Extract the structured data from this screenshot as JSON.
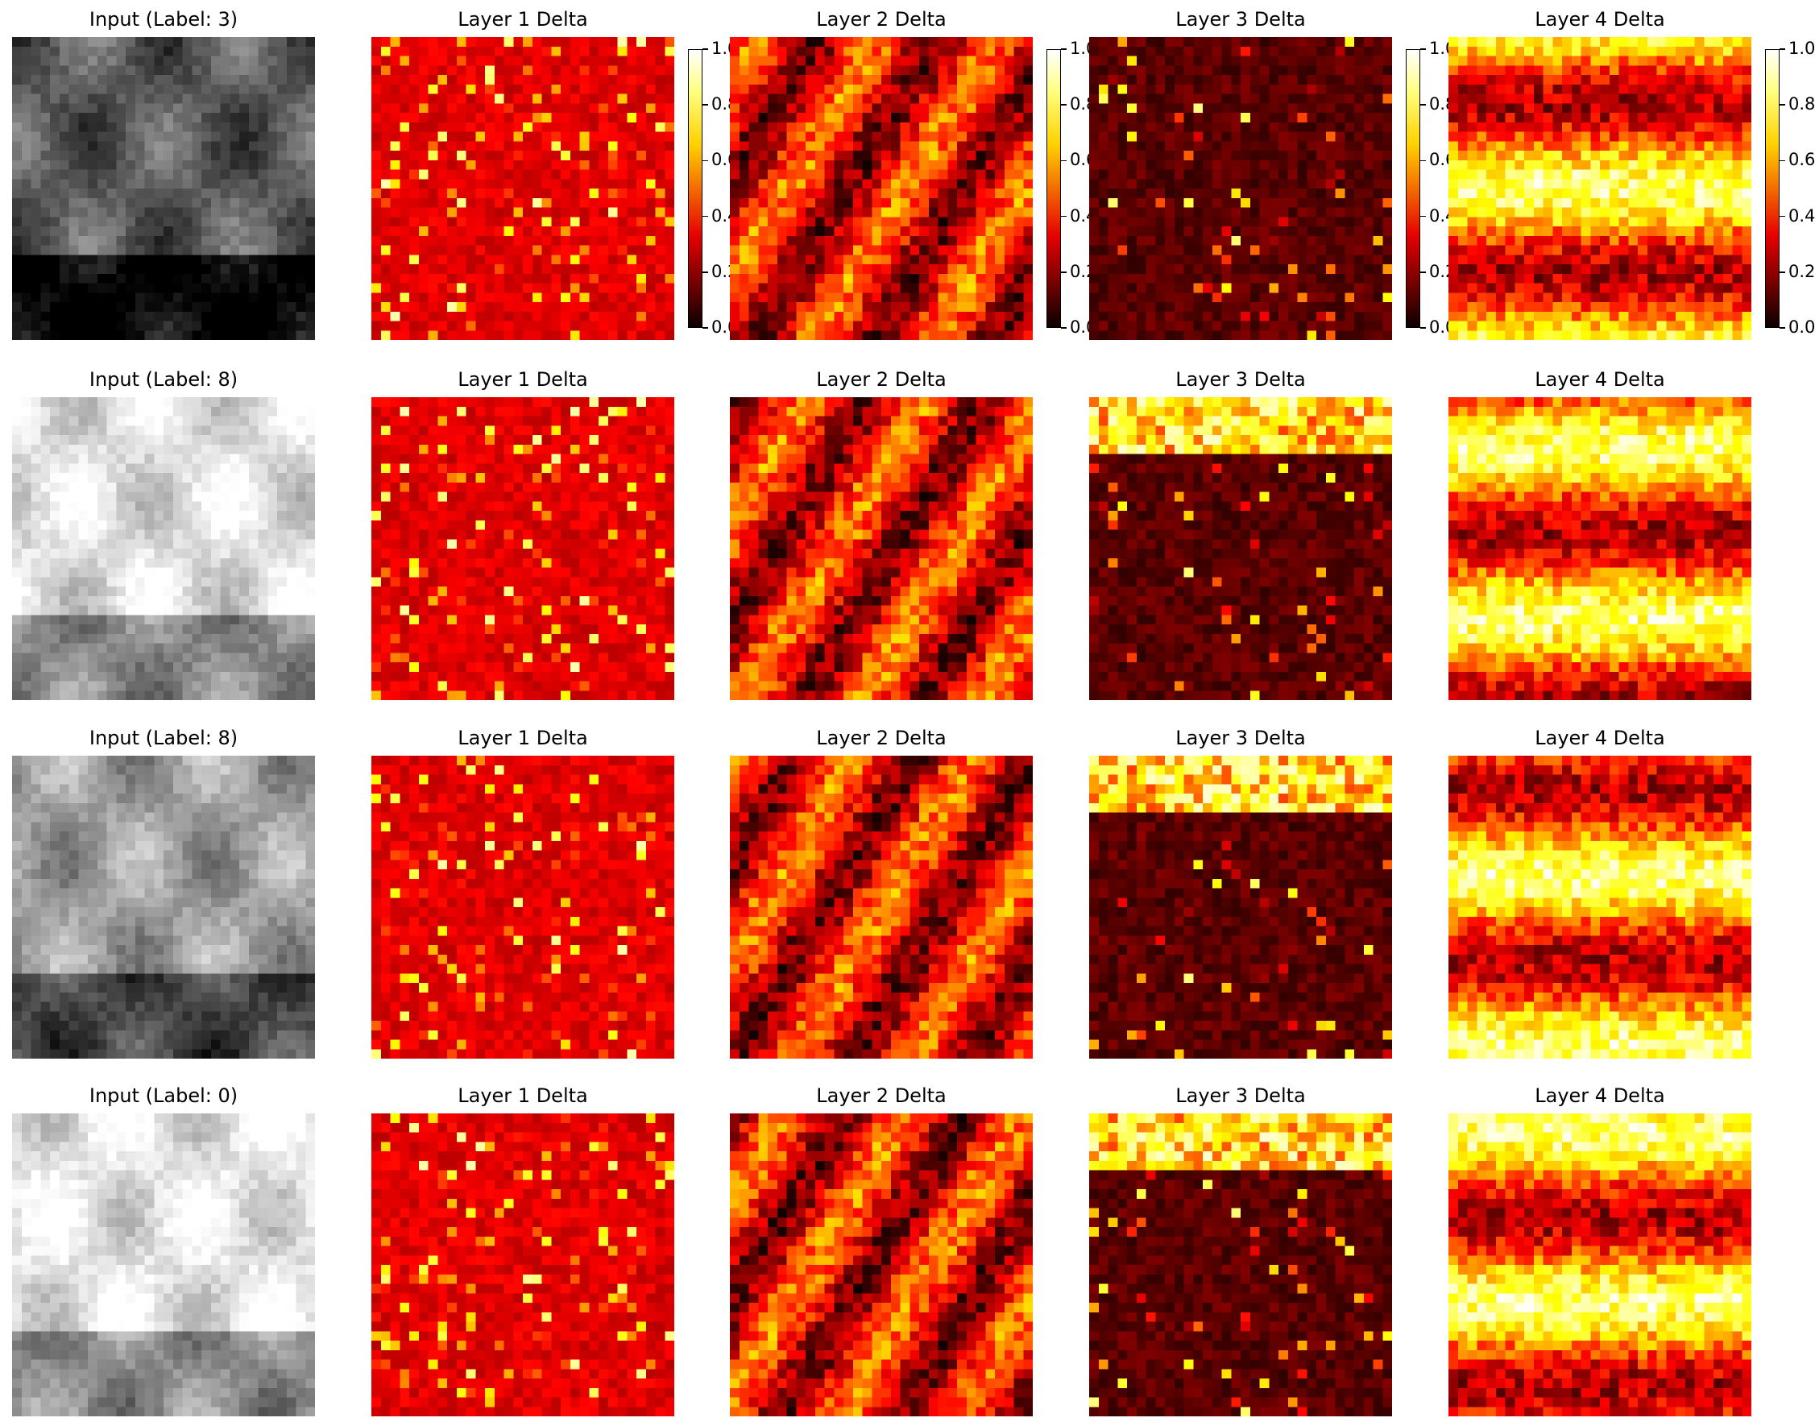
{
  "figure": {
    "rows": [
      {
        "panels": [
          {
            "title": "Input (Label: 3)",
            "kind": "input",
            "seed": 11
          },
          {
            "title": "Layer 1 Delta",
            "kind": "delta",
            "layer": 1,
            "seed": 12,
            "colorbar": true
          },
          {
            "title": "Layer 2 Delta",
            "kind": "delta",
            "layer": 2,
            "seed": 13,
            "colorbar": true
          },
          {
            "title": "Layer 3 Delta",
            "kind": "delta",
            "layer": 3,
            "seed": 14,
            "colorbar": true
          },
          {
            "title": "Layer 4 Delta",
            "kind": "delta",
            "layer": 4,
            "seed": 15,
            "colorbar": true
          }
        ]
      },
      {
        "panels": [
          {
            "title": "Input (Label: 8)",
            "kind": "input",
            "seed": 21
          },
          {
            "title": "Layer 1 Delta",
            "kind": "delta",
            "layer": 1,
            "seed": 22
          },
          {
            "title": "Layer 2 Delta",
            "kind": "delta",
            "layer": 2,
            "seed": 23
          },
          {
            "title": "Layer 3 Delta",
            "kind": "delta",
            "layer": 3,
            "seed": 24
          },
          {
            "title": "Layer 4 Delta",
            "kind": "delta",
            "layer": 4,
            "seed": 25
          }
        ]
      },
      {
        "panels": [
          {
            "title": "Input (Label: 8)",
            "kind": "input",
            "seed": 31
          },
          {
            "title": "Layer 1 Delta",
            "kind": "delta",
            "layer": 1,
            "seed": 32
          },
          {
            "title": "Layer 2 Delta",
            "kind": "delta",
            "layer": 2,
            "seed": 33
          },
          {
            "title": "Layer 3 Delta",
            "kind": "delta",
            "layer": 3,
            "seed": 34
          },
          {
            "title": "Layer 4 Delta",
            "kind": "delta",
            "layer": 4,
            "seed": 35
          }
        ]
      },
      {
        "panels": [
          {
            "title": "Input (Label: 0)",
            "kind": "input",
            "seed": 41
          },
          {
            "title": "Layer 1 Delta",
            "kind": "delta",
            "layer": 1,
            "seed": 42
          },
          {
            "title": "Layer 2 Delta",
            "kind": "delta",
            "layer": 2,
            "seed": 43
          },
          {
            "title": "Layer 3 Delta",
            "kind": "delta",
            "layer": 3,
            "seed": 44
          },
          {
            "title": "Layer 4 Delta",
            "kind": "delta",
            "layer": 4,
            "seed": 45
          }
        ]
      }
    ],
    "colorbar_ticks": [
      "0.0",
      "0.2",
      "0.4",
      "0.6",
      "0.8",
      "1.0"
    ]
  },
  "chart_data": {
    "type": "heatmap",
    "grid_rows": 4,
    "grid_cols": 5,
    "input_colormap": "gray",
    "delta_colormap": "hot",
    "vmin": 0.0,
    "vmax": 1.0,
    "colorbar_ticks": [
      0.0,
      0.2,
      0.4,
      0.6,
      0.8,
      1.0
    ],
    "image_resolution": [
      32,
      32
    ],
    "axes": "off",
    "panel_titles": [
      [
        "Input (Label: 3)",
        "Layer 1 Delta",
        "Layer 2 Delta",
        "Layer 3 Delta",
        "Layer 4 Delta"
      ],
      [
        "Input (Label: 8)",
        "Layer 1 Delta",
        "Layer 2 Delta",
        "Layer 3 Delta",
        "Layer 4 Delta"
      ],
      [
        "Input (Label: 8)",
        "Layer 1 Delta",
        "Layer 2 Delta",
        "Layer 3 Delta",
        "Layer 4 Delta"
      ],
      [
        "Input (Label: 0)",
        "Layer 1 Delta",
        "Layer 2 Delta",
        "Layer 3 Delta",
        "Layer 4 Delta"
      ]
    ],
    "input_labels": [
      3,
      8,
      8,
      0
    ]
  }
}
